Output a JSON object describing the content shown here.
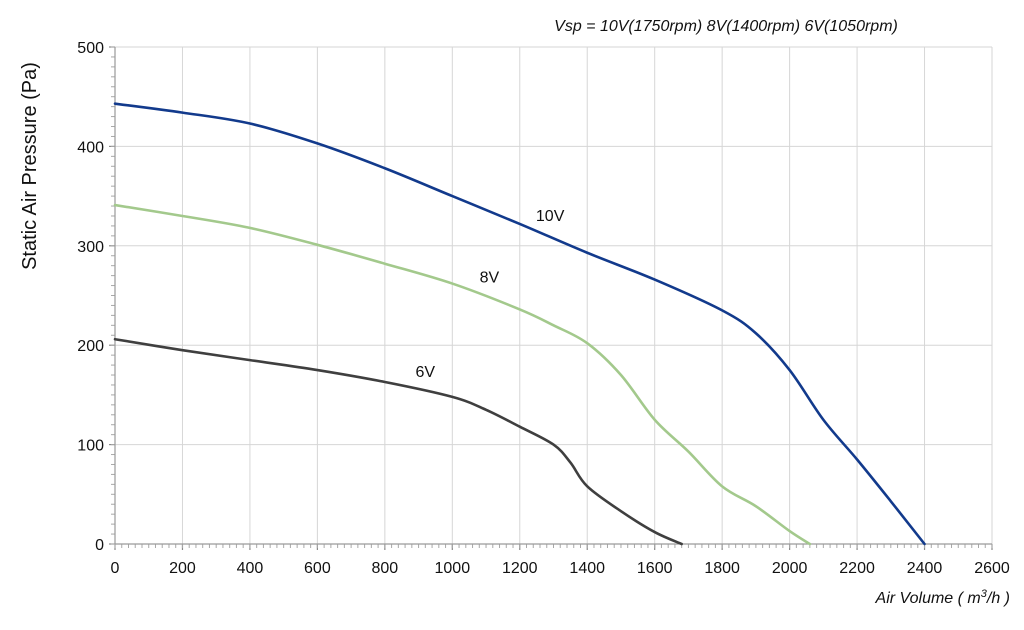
{
  "chart_data": {
    "type": "line",
    "header_note": "Vsp = 10V(1750rpm)  8V(1400rpm)   6V(1050rpm)",
    "ylabel": "Static Air Pressure  (Pa)",
    "xlabel_prefix": "Air Volume ( m",
    "xlabel_sup": "3",
    "xlabel_suffix": "/h )",
    "xlim": [
      0,
      2600
    ],
    "ylim": [
      0,
      500
    ],
    "xticks": [
      "0",
      "200",
      "400",
      "600",
      "800",
      "1000",
      "1200",
      "1400",
      "1600",
      "1800",
      "2000",
      "2200",
      "2400",
      "2600"
    ],
    "yticks": [
      "0",
      "100",
      "200",
      "300",
      "400",
      "500"
    ],
    "grid": true,
    "series": [
      {
        "name": "10V",
        "color": "#123a8c",
        "label_at": [
          1290,
          325
        ],
        "x": [
          0,
          200,
          400,
          600,
          800,
          1000,
          1200,
          1400,
          1600,
          1800,
          1900,
          2000,
          2100,
          2200,
          2300,
          2400
        ],
        "y": [
          443,
          434,
          423,
          403,
          378,
          350,
          322,
          293,
          266,
          235,
          212,
          175,
          125,
          85,
          43,
          0
        ]
      },
      {
        "name": "8V",
        "color": "#a3c98c",
        "label_at": [
          1110,
          263
        ],
        "x": [
          0,
          200,
          400,
          600,
          800,
          1000,
          1200,
          1300,
          1400,
          1500,
          1600,
          1700,
          1800,
          1900,
          2000,
          2060
        ],
        "y": [
          341,
          330,
          318,
          301,
          282,
          262,
          236,
          220,
          202,
          170,
          125,
          93,
          58,
          38,
          13,
          0
        ]
      },
      {
        "name": "6V",
        "color": "#3f3f3f",
        "label_at": [
          920,
          168
        ],
        "x": [
          0,
          200,
          400,
          600,
          800,
          1000,
          1100,
          1200,
          1300,
          1350,
          1400,
          1500,
          1600,
          1680
        ],
        "y": [
          206,
          195,
          185,
          175,
          163,
          148,
          135,
          118,
          100,
          82,
          58,
          33,
          12,
          0
        ]
      }
    ]
  }
}
